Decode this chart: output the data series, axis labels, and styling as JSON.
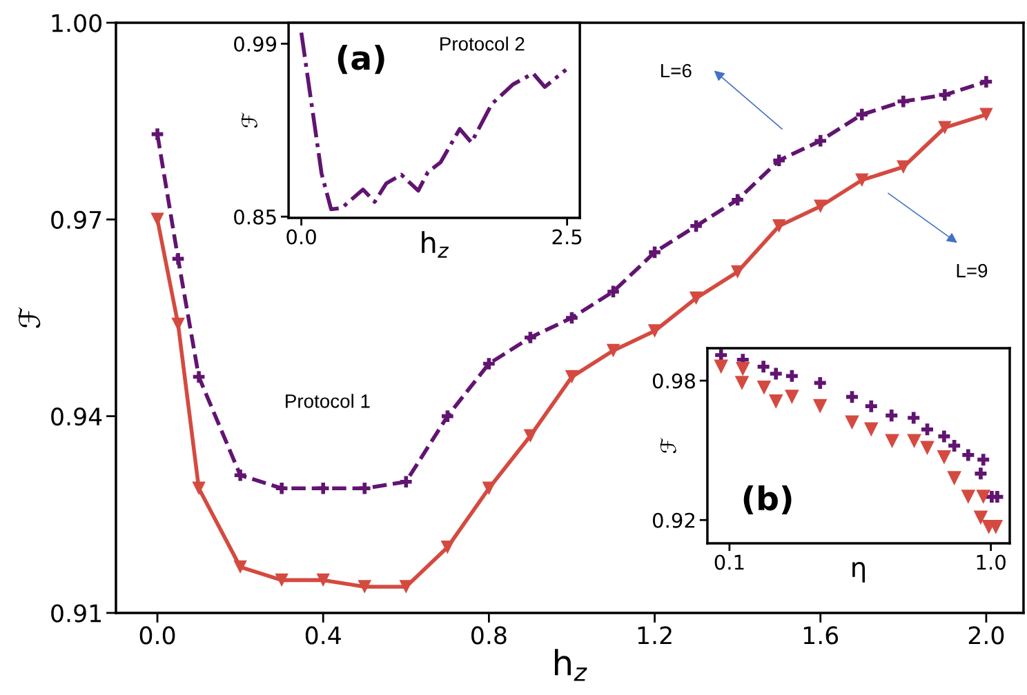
{
  "chart_data": [
    {
      "type": "line",
      "xlabel": "h$_{z}$",
      "ylabel": "ℱ",
      "x": [
        0,
        0.05,
        0.1,
        0.2,
        0.3,
        0.4,
        0.5,
        0.6,
        0.7,
        0.8,
        0.9,
        1.0,
        1.1,
        1.2,
        1.3,
        1.4,
        1.5,
        1.6,
        1.7,
        1.8,
        1.9,
        2.0
      ],
      "series": [
        {
          "color": "#611470",
          "marker": "cross",
          "line_style": "dashed",
          "values": [
            0.983,
            0.964,
            0.946,
            0.931,
            0.929,
            0.929,
            0.929,
            0.93,
            0.94,
            0.948,
            0.952,
            0.955,
            0.959,
            0.965,
            0.969,
            0.973,
            0.979,
            0.982,
            0.986,
            0.988,
            0.989,
            0.991
          ]
        },
        {
          "color": "#d44a40",
          "marker": "triangle",
          "line_style": "solid",
          "values": [
            0.97,
            0.954,
            0.929,
            0.917,
            0.915,
            0.915,
            0.914,
            0.914,
            0.92,
            0.929,
            0.937,
            0.946,
            0.95,
            0.953,
            0.958,
            0.962,
            0.969,
            0.972,
            0.976,
            0.978,
            0.984,
            0.986
          ]
        }
      ],
      "xlim": [
        -0.1,
        2.09
      ],
      "ylim": [
        0.91,
        1.0
      ],
      "xticks": [
        {
          "value": 0,
          "label": "0.0"
        },
        0.4,
        0.8,
        1.2,
        1.6,
        {
          "value": 2,
          "label": "2.0"
        }
      ],
      "yticks": [
        0.91,
        0.94,
        0.97,
        {
          "value": 1,
          "label": "1.00"
        }
      ],
      "annotations": [
        "Protocol 1",
        "L=6",
        "L=9"
      ]
    },
    {
      "type": "line",
      "xlabel": "h$_{z}$",
      "ylabel": "ℱ",
      "x": [
        0,
        0.19,
        0.28,
        0.38,
        0.58,
        0.69,
        0.8,
        0.94,
        1.1,
        1.19,
        1.31,
        1.49,
        1.6,
        1.79,
        1.99,
        2.18,
        2.29,
        2.49
      ],
      "series": [
        {
          "color": "#611470",
          "marker": "none",
          "line_style": "dashdot",
          "values": [
            0.999,
            0.885,
            0.856,
            0.857,
            0.872,
            0.862,
            0.877,
            0.884,
            0.871,
            0.886,
            0.894,
            0.921,
            0.91,
            0.941,
            0.957,
            0.966,
            0.955,
            0.969
          ]
        }
      ],
      "xlim": [
        -0.12,
        2.62
      ],
      "ylim": [
        0.849,
        1.007
      ],
      "xticks": [
        {
          "value": 0,
          "label": "0.0"
        },
        2.5
      ],
      "yticks": [
        0.85,
        0.99
      ],
      "annotations": [
        "(a)",
        "Protocol 2"
      ]
    },
    {
      "type": "scatter",
      "xlabel": "η",
      "ylabel": "ℱ",
      "series": [
        {
          "color": "#611470",
          "marker": "cross",
          "x": [
            0.071,
            0.146,
            0.217,
            0.26,
            0.315,
            0.412,
            0.522,
            0.588,
            0.658,
            0.734,
            0.781,
            0.839,
            0.874,
            0.922,
            0.974,
            0.965,
            1.003,
            1.022
          ],
          "values": [
            0.991,
            0.989,
            0.986,
            0.983,
            0.982,
            0.979,
            0.973,
            0.969,
            0.965,
            0.964,
            0.959,
            0.956,
            0.952,
            0.948,
            0.946,
            0.94,
            0.93,
            0.93
          ]
        },
        {
          "color": "#d44a40",
          "marker": "triangle",
          "x": [
            0.071,
            0.146,
            0.143,
            0.219,
            0.26,
            0.315,
            0.412,
            0.522,
            0.588,
            0.66,
            0.736,
            0.781,
            0.839,
            0.874,
            0.922,
            0.974,
            0.965,
            0.993,
            1.017
          ],
          "values": [
            0.986,
            0.985,
            0.979,
            0.977,
            0.971,
            0.973,
            0.969,
            0.962,
            0.959,
            0.954,
            0.954,
            0.951,
            0.947,
            0.938,
            0.93,
            0.93,
            0.921,
            0.917,
            0.917
          ]
        }
      ],
      "xlim": [
        0.024,
        1.065
      ],
      "ylim": [
        0.91,
        0.994
      ],
      "xticks": [
        0.1,
        {
          "value": 1,
          "label": "1.0"
        }
      ],
      "yticks": [
        0.92,
        0.98
      ],
      "annotations": [
        "(b)"
      ]
    }
  ]
}
